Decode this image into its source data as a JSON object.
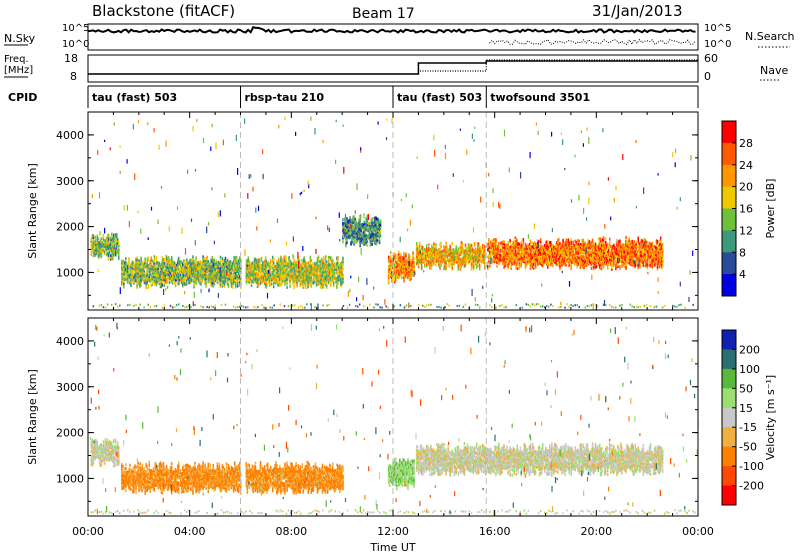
{
  "header": {
    "station": "Blackstone (fitACF)",
    "beam": "Beam 17",
    "date": "31/Jan/2013"
  },
  "aux_panels": {
    "nsky_label": "N.Sky",
    "nsearch_label": "N.Search",
    "nsky_ticks": [
      "10^5",
      "10^0"
    ],
    "freq_label_top": "Freq.",
    "freq_label_bottom": "[MHz]",
    "freq_ticks": [
      "18",
      "8"
    ],
    "nave_label": "Nave",
    "nave_ticks": [
      "60",
      "0"
    ],
    "cpid_label": "CPID"
  },
  "cpid_segments": [
    {
      "name": "tau (fast) 503",
      "start_hour": 0.0
    },
    {
      "name": "rbsp-tau 210",
      "start_hour": 6.0
    },
    {
      "name": "tau (fast) 503",
      "start_hour": 12.0
    },
    {
      "name": "twofsound 3501",
      "start_hour": 15.67
    }
  ],
  "power_colorbar": {
    "label": "Power [dB]",
    "ticks": [
      "28",
      "24",
      "20",
      "16",
      "12",
      "8",
      "4"
    ],
    "colors": [
      "#ff0000",
      "#ff5a00",
      "#ff9600",
      "#f0c800",
      "#70c03a",
      "#3a9a7a",
      "#2a4a9a",
      "#0000e0"
    ]
  },
  "velocity_colorbar": {
    "label": "Velocity [m s⁻¹]",
    "ticks": [
      "200",
      "100",
      "50",
      "15",
      "-15",
      "-50",
      "-100",
      "-200"
    ],
    "colors": [
      "#1020b0",
      "#2a7070",
      "#5ab83a",
      "#9adf70",
      "#c8c8c8",
      "#f0b040",
      "#ff8000",
      "#ff4a00",
      "#ff0000"
    ]
  },
  "chart_data": {
    "type": "heatmap",
    "title": "Blackstone (fitACF)  Beam 17  31/Jan/2013",
    "xlabel": "Time UT",
    "ylabel": "Slant Range [km]",
    "x_ticks": [
      "00:00",
      "04:00",
      "08:00",
      "12:00",
      "16:00",
      "20:00",
      "00:00"
    ],
    "y_ticks": [
      "4000",
      "3000",
      "2000",
      "1000"
    ],
    "xlim_hours": [
      0,
      24
    ],
    "ylim_km": [
      180,
      4500
    ],
    "panels": [
      {
        "quantity": "Power [dB]",
        "clim": [
          0,
          30
        ],
        "echo_regions": [
          {
            "start_hour": 0.1,
            "end_hour": 1.2,
            "range_km": [
              1400,
              1800
            ],
            "value": 14
          },
          {
            "start_hour": 1.3,
            "end_hour": 6.0,
            "range_km": [
              800,
              1300
            ],
            "value": 14
          },
          {
            "start_hour": 6.2,
            "end_hour": 10.0,
            "range_km": [
              800,
              1300
            ],
            "value": 16
          },
          {
            "start_hour": 10.0,
            "end_hour": 11.5,
            "range_km": [
              1700,
              2200
            ],
            "value": 10
          },
          {
            "start_hour": 11.8,
            "end_hour": 12.8,
            "range_km": [
              900,
              1400
            ],
            "value": 22
          },
          {
            "start_hour": 12.9,
            "end_hour": 15.6,
            "range_km": [
              1200,
              1600
            ],
            "value": 20
          },
          {
            "start_hour": 15.7,
            "end_hour": 22.6,
            "range_km": [
              1200,
              1700
            ],
            "value": 24
          }
        ]
      },
      {
        "quantity": "Velocity [m s-1]",
        "clim": [
          -250,
          250
        ],
        "echo_regions": [
          {
            "start_hour": 0.1,
            "end_hour": 1.2,
            "range_km": [
              1400,
              1800
            ],
            "value": 0
          },
          {
            "start_hour": 1.3,
            "end_hour": 6.0,
            "range_km": [
              800,
              1300
            ],
            "value": -60
          },
          {
            "start_hour": 6.2,
            "end_hour": 10.0,
            "range_km": [
              800,
              1300
            ],
            "value": -60
          },
          {
            "start_hour": 11.8,
            "end_hour": 12.8,
            "range_km": [
              900,
              1400
            ],
            "value": 40
          },
          {
            "start_hour": 12.9,
            "end_hour": 22.6,
            "range_km": [
              1200,
              1700
            ],
            "value": 0
          }
        ]
      }
    ]
  }
}
